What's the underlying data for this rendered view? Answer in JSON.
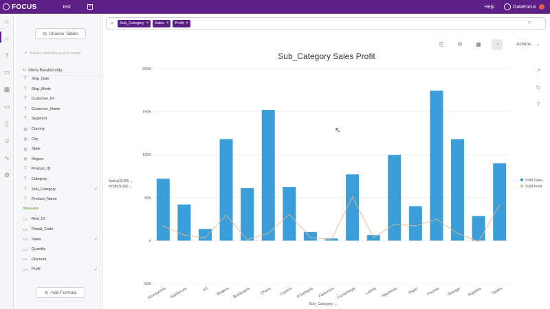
{
  "app": {
    "logo": "FOCUS",
    "tab_name": "test",
    "add_tab": "+",
    "help": "Help",
    "user": "DataFocus"
  },
  "sidebar": {
    "choose_tables": "Choose Tables",
    "search_placeholder": "Please input the search words",
    "show_relationship": "Show Relationship",
    "fields": [
      {
        "name": "Ship_Date",
        "type": "T",
        "checked": false
      },
      {
        "name": "Ship_Mode",
        "type": "T",
        "checked": false
      },
      {
        "name": "Customer_ID",
        "type": "T",
        "checked": false
      },
      {
        "name": "Customer_Name",
        "type": "T",
        "checked": false
      },
      {
        "name": "Segment",
        "type": "T",
        "checked": false
      },
      {
        "name": "Country",
        "type": "geo",
        "checked": false
      },
      {
        "name": "City",
        "type": "geo",
        "checked": false
      },
      {
        "name": "State",
        "type": "geo",
        "checked": false
      },
      {
        "name": "Region",
        "type": "geo",
        "checked": false
      },
      {
        "name": "Product_ID",
        "type": "T",
        "checked": false
      },
      {
        "name": "Category",
        "type": "T",
        "checked": false
      },
      {
        "name": "Sub_Category",
        "type": "T",
        "checked": true
      },
      {
        "name": "Product_Name",
        "type": "T",
        "checked": false
      }
    ],
    "measure_header": "Measure",
    "measures": [
      {
        "name": "Row_ID",
        "type": "123",
        "checked": false
      },
      {
        "name": "Postal_Code",
        "type": "123",
        "checked": false
      },
      {
        "name": "Sales",
        "type": "123",
        "checked": true
      },
      {
        "name": "Quantity",
        "type": "123",
        "checked": false
      },
      {
        "name": "Discount",
        "type": "123",
        "checked": false
      },
      {
        "name": "Profit",
        "type": "123",
        "checked": true
      }
    ],
    "add_formula": "Add Formula"
  },
  "search": {
    "tokens": [
      "Sub_Category",
      "Sales",
      "Profit"
    ]
  },
  "toolbar": {
    "actions": "Actions"
  },
  "colors": {
    "brand": "#5b1f86",
    "bar": "#3a9fd8",
    "line": "#f0b48c",
    "check": "#6cae3e"
  },
  "chart_data": {
    "type": "bar",
    "title": "Sub_Category Sales Profit",
    "xlabel": "Sub_Category",
    "y_axis_labels": [
      "Sales(SUM)",
      "Profit(SUM)"
    ],
    "ylim": [
      -50000,
      200000
    ],
    "y_ticks": [
      "-50K",
      "0",
      "50K",
      "100K",
      "150K",
      "200K"
    ],
    "y_tick_values": [
      -50000,
      0,
      50000,
      100000,
      150000,
      200000
    ],
    "categories": [
      "Accessories",
      "Appliances",
      "Art",
      "Binders",
      "Bookcases",
      "Chairs",
      "Copiers",
      "Envelopes",
      "Fasteners",
      "Furnishings",
      "Labels",
      "Machines",
      "Paper",
      "Phones",
      "Storage",
      "Supplies",
      "Tables"
    ],
    "series": [
      {
        "name": "SUM Sales",
        "kind": "bar",
        "values": [
          72000,
          42000,
          13500,
          118000,
          61000,
          152000,
          62500,
          10000,
          2500,
          77000,
          6500,
          99500,
          40000,
          174500,
          118000,
          28500,
          90000
        ]
      },
      {
        "name": "SUM Profit",
        "kind": "line",
        "values": [
          17000,
          6500,
          3500,
          29500,
          1000,
          8500,
          30500,
          4000,
          1000,
          51000,
          3500,
          19000,
          17000,
          25000,
          8500,
          -1000,
          41500
        ]
      }
    ],
    "legend": "right"
  }
}
